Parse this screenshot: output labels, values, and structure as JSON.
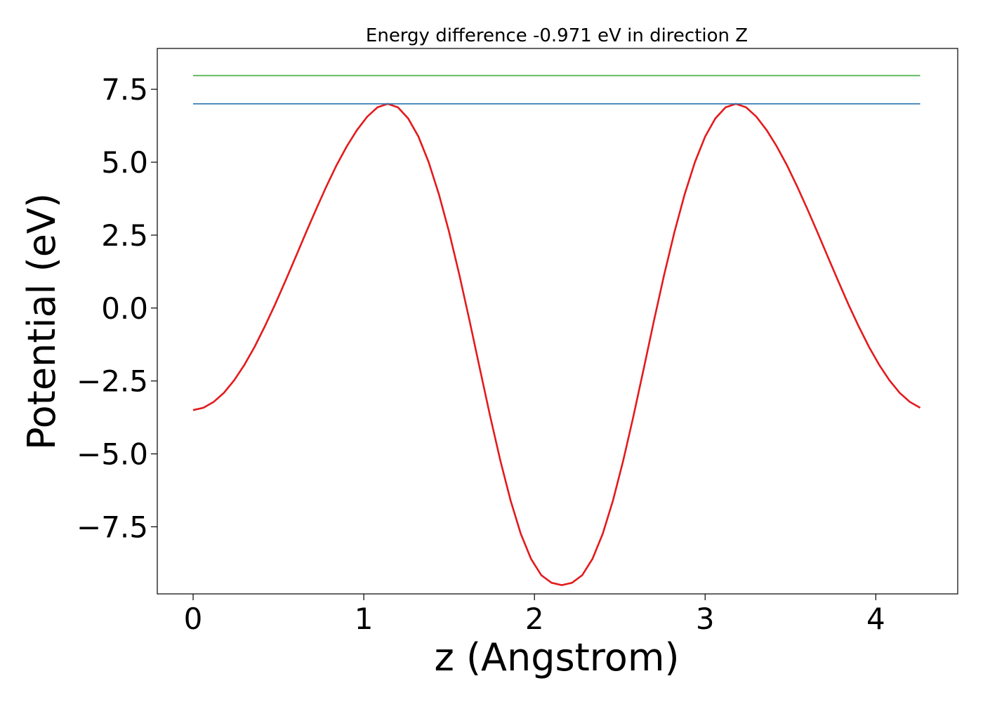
{
  "chart_data": {
    "type": "line",
    "title": "Energy difference -0.971 eV in direction Z",
    "xlabel": "z (Angstrom)",
    "ylabel": "Potential (eV)",
    "xlim": [
      -0.21,
      4.48
    ],
    "ylim": [
      -9.8,
      8.9
    ],
    "x_ticks": [
      0,
      1,
      2,
      3,
      4
    ],
    "x_tick_labels": [
      "0",
      "1",
      "2",
      "3",
      "4"
    ],
    "y_ticks": [
      -7.5,
      -5.0,
      -2.5,
      0.0,
      2.5,
      5.0,
      7.5
    ],
    "y_tick_labels": [
      "−7.5",
      "−5.0",
      "−2.5",
      "0.0",
      "2.5",
      "5.0",
      "7.5"
    ],
    "grid": false,
    "colors": {
      "potential": "#e41a1c",
      "level_blue": "#377eb8",
      "level_green": "#4daf4a"
    },
    "series": [
      {
        "key": "potential",
        "x": [
          0.0,
          0.06,
          0.12,
          0.18,
          0.24,
          0.3,
          0.36,
          0.42,
          0.48,
          0.54,
          0.6,
          0.66,
          0.72,
          0.78,
          0.84,
          0.9,
          0.96,
          1.02,
          1.08,
          1.14,
          1.2,
          1.26,
          1.32,
          1.38,
          1.44,
          1.5,
          1.56,
          1.62,
          1.68,
          1.74,
          1.8,
          1.86,
          1.92,
          1.98,
          2.04,
          2.1,
          2.16,
          2.22,
          2.28,
          2.34,
          2.4,
          2.46,
          2.52,
          2.58,
          2.64,
          2.7,
          2.76,
          2.82,
          2.88,
          2.94,
          3.0,
          3.06,
          3.12,
          3.18,
          3.24,
          3.3,
          3.36,
          3.42,
          3.48,
          3.54,
          3.6,
          3.66,
          3.72,
          3.78,
          3.84,
          3.9,
          3.96,
          4.02,
          4.08,
          4.14,
          4.2,
          4.26
        ],
        "y": [
          -3.5,
          -3.42,
          -3.22,
          -2.91,
          -2.48,
          -1.95,
          -1.33,
          -0.63,
          0.12,
          0.92,
          1.74,
          2.57,
          3.38,
          4.16,
          4.89,
          5.54,
          6.1,
          6.56,
          6.88,
          7.0,
          6.88,
          6.5,
          5.88,
          5.0,
          3.9,
          2.6,
          1.14,
          -0.44,
          -2.08,
          -3.7,
          -5.23,
          -6.6,
          -7.74,
          -8.6,
          -9.16,
          -9.42,
          -9.5,
          -9.42,
          -9.16,
          -8.6,
          -7.74,
          -6.6,
          -5.23,
          -3.7,
          -2.08,
          -0.44,
          1.14,
          2.6,
          3.9,
          5.0,
          5.88,
          6.5,
          6.88,
          7.0,
          6.88,
          6.56,
          6.1,
          5.54,
          4.89,
          4.16,
          3.38,
          2.57,
          1.74,
          0.92,
          0.12,
          -0.63,
          -1.33,
          -1.95,
          -2.48,
          -2.91,
          -3.22,
          -3.42
        ]
      },
      {
        "key": "level_blue",
        "x": [
          0.0,
          4.26
        ],
        "y": [
          7.0,
          7.0
        ]
      },
      {
        "key": "level_green",
        "x": [
          0.0,
          4.26
        ],
        "y": [
          7.97,
          7.97
        ]
      }
    ]
  }
}
